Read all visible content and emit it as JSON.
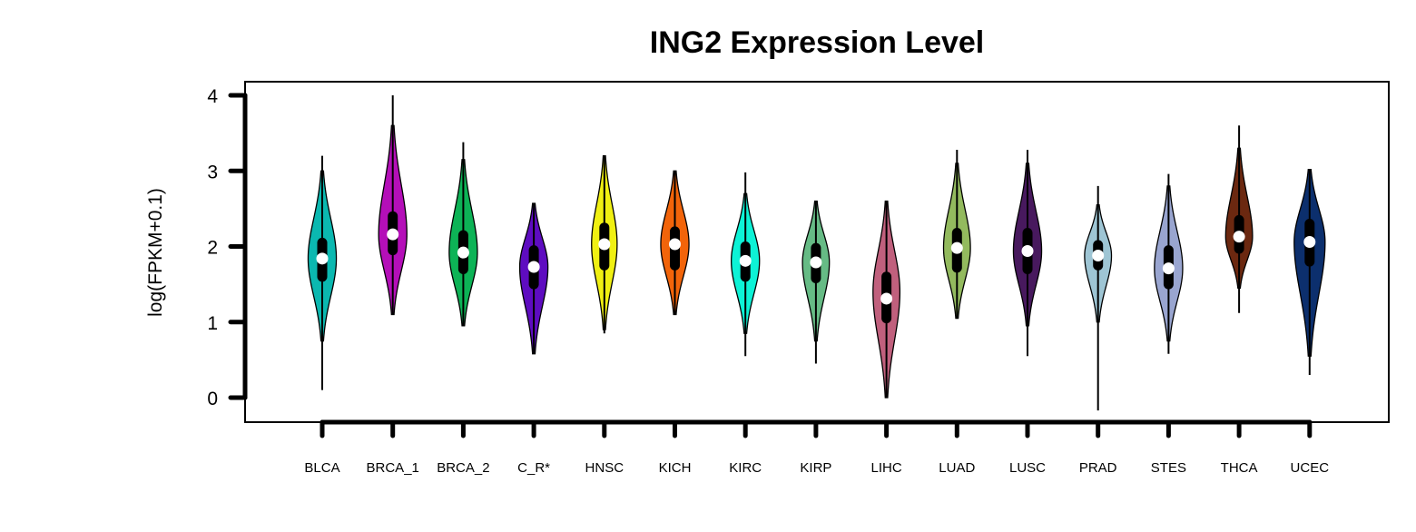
{
  "chart_data": {
    "type": "violin",
    "title": "ING2 Expression Level",
    "ylabel": "log(FPKM+0.1)",
    "xlabel": "",
    "ylim": [
      -0.4,
      4.2
    ],
    "yticks": [
      0,
      1,
      2,
      3,
      4
    ],
    "categories": [
      "BLCA",
      "BRCA_1",
      "BRCA_2",
      "C_R*",
      "HNSC",
      "KICH",
      "KIRC",
      "KIRP",
      "LIHC",
      "LUAD",
      "LUSC",
      "PRAD",
      "STES",
      "THCA",
      "UCEC"
    ],
    "series": [
      {
        "category": "BLCA",
        "color": "#0BB8B0",
        "min": 0.1,
        "max": 3.2,
        "q1": 1.6,
        "median": 1.84,
        "q3": 2.05,
        "peak": 1.84,
        "width": 0.42,
        "bottom": 0.75,
        "top": 3.0
      },
      {
        "category": "BRCA_1",
        "color": "#B40FB8",
        "min": 1.1,
        "max": 4.0,
        "q1": 1.95,
        "median": 2.16,
        "q3": 2.4,
        "peak": 2.16,
        "width": 0.42,
        "bottom": 1.1,
        "top": 3.6
      },
      {
        "category": "BRCA_2",
        "color": "#0DB356",
        "min": 0.95,
        "max": 3.38,
        "q1": 1.7,
        "median": 1.92,
        "q3": 2.15,
        "peak": 1.92,
        "width": 0.42,
        "bottom": 0.95,
        "top": 3.15
      },
      {
        "category": "C_R*",
        "color": "#5E0CC0",
        "min": 0.58,
        "max": 2.57,
        "q1": 1.5,
        "median": 1.73,
        "q3": 1.95,
        "peak": 1.73,
        "width": 0.42,
        "bottom": 0.58,
        "top": 2.57
      },
      {
        "category": "HNSC",
        "color": "#F0F012",
        "min": 0.85,
        "max": 3.2,
        "q1": 1.75,
        "median": 2.03,
        "q3": 2.25,
        "peak": 2.03,
        "width": 0.38,
        "bottom": 0.9,
        "top": 3.2
      },
      {
        "category": "KICH",
        "color": "#F2640A",
        "min": 1.1,
        "max": 3.0,
        "q1": 1.75,
        "median": 2.03,
        "q3": 2.2,
        "peak": 2.03,
        "width": 0.42,
        "bottom": 1.1,
        "top": 3.0
      },
      {
        "category": "KIRC",
        "color": "#0DF2D6",
        "min": 0.55,
        "max": 2.98,
        "q1": 1.6,
        "median": 1.81,
        "q3": 2.0,
        "peak": 1.81,
        "width": 0.42,
        "bottom": 0.85,
        "top": 2.7
      },
      {
        "category": "KIRP",
        "color": "#66BB85",
        "min": 0.45,
        "max": 2.6,
        "q1": 1.58,
        "median": 1.79,
        "q3": 1.98,
        "peak": 1.79,
        "width": 0.4,
        "bottom": 0.75,
        "top": 2.6
      },
      {
        "category": "LIHC",
        "color": "#C0607D",
        "min": 0.0,
        "max": 2.6,
        "q1": 1.05,
        "median": 1.31,
        "q3": 1.6,
        "peak": 1.4,
        "width": 0.4,
        "bottom": 0.0,
        "top": 2.6
      },
      {
        "category": "LUAD",
        "color": "#93BA5E",
        "min": 1.05,
        "max": 3.28,
        "q1": 1.72,
        "median": 1.98,
        "q3": 2.18,
        "peak": 1.98,
        "width": 0.4,
        "bottom": 1.05,
        "top": 3.1
      },
      {
        "category": "LUSC",
        "color": "#48195E",
        "min": 0.55,
        "max": 3.28,
        "q1": 1.7,
        "median": 1.94,
        "q3": 2.18,
        "peak": 1.94,
        "width": 0.42,
        "bottom": 0.95,
        "top": 3.1
      },
      {
        "category": "PRAD",
        "color": "#9EC5D4",
        "min": -0.17,
        "max": 2.8,
        "q1": 1.75,
        "median": 1.88,
        "q3": 2.02,
        "peak": 1.88,
        "width": 0.4,
        "bottom": 1.0,
        "top": 2.55
      },
      {
        "category": "STES",
        "color": "#99A5D0",
        "min": 0.58,
        "max": 2.96,
        "q1": 1.5,
        "median": 1.71,
        "q3": 1.95,
        "peak": 1.71,
        "width": 0.42,
        "bottom": 0.75,
        "top": 2.8
      },
      {
        "category": "THCA",
        "color": "#6B2810",
        "min": 1.12,
        "max": 3.6,
        "q1": 1.97,
        "median": 2.13,
        "q3": 2.35,
        "peak": 2.13,
        "width": 0.4,
        "bottom": 1.45,
        "top": 3.3
      },
      {
        "category": "UCEC",
        "color": "#0C2F6D",
        "min": 0.3,
        "max": 3.02,
        "q1": 1.8,
        "median": 2.06,
        "q3": 2.3,
        "peak": 2.06,
        "width": 0.46,
        "bottom": 0.55,
        "top": 3.02
      }
    ],
    "grid": false,
    "legend": "none"
  }
}
